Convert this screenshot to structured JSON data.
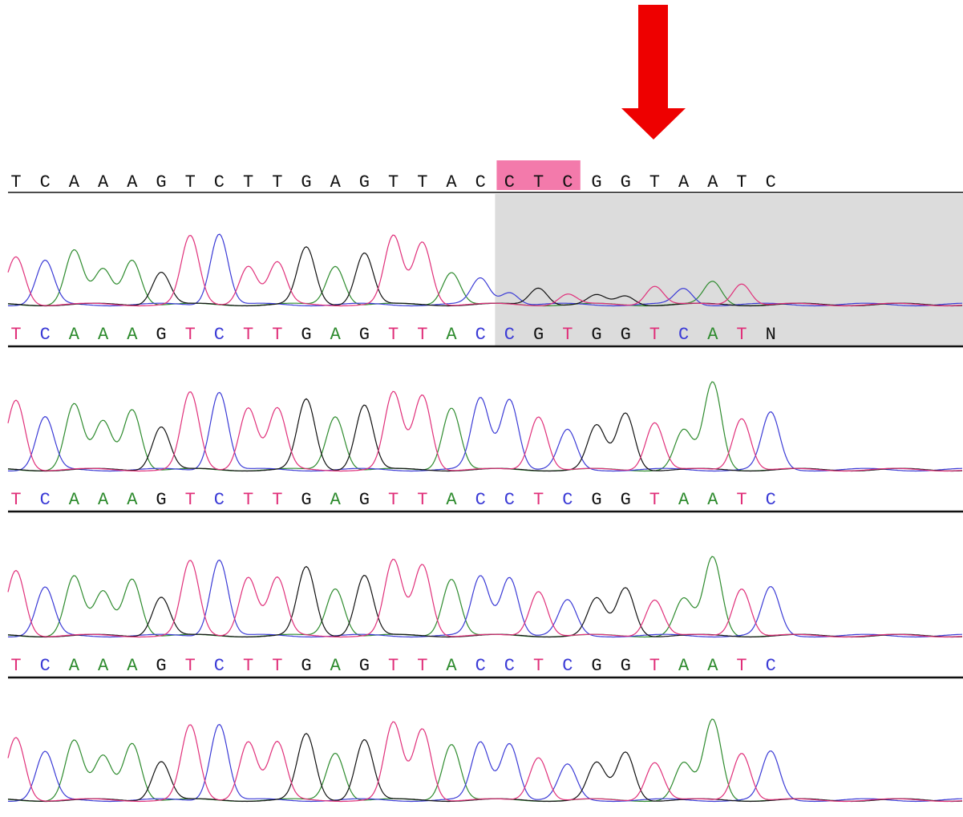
{
  "colors": {
    "A": "#2e8b2e",
    "C": "#3b3bd6",
    "G": "#111111",
    "T": "#e0307a",
    "N": "#111111",
    "reference_text": "#111111",
    "highlight": "#f37aab",
    "shade": "#dcdcdc",
    "arrow": "#ee0000"
  },
  "reference": {
    "bases": [
      "T",
      "C",
      "A",
      "A",
      "A",
      "G",
      "T",
      "C",
      "T",
      "T",
      "G",
      "A",
      "G",
      "T",
      "T",
      "A",
      "C",
      "C",
      "T",
      "C",
      "G",
      "G",
      "T",
      "A",
      "A",
      "T",
      "C"
    ],
    "highlight_range": [
      17,
      19
    ]
  },
  "traces": [
    {
      "name": "trace-1",
      "bases": [
        "T",
        "C",
        "A",
        "A",
        "A",
        "G",
        "T",
        "C",
        "T",
        "T",
        "G",
        "A",
        "G",
        "T",
        "T",
        "A",
        "C",
        "C",
        "G",
        "T",
        "G",
        "G",
        "T",
        "C",
        "A",
        "T",
        "N"
      ],
      "peak_levels": [
        0.55,
        0.5,
        0.62,
        0.4,
        0.52,
        0.38,
        0.78,
        0.82,
        0.45,
        0.48,
        0.65,
        0.45,
        0.6,
        0.78,
        0.72,
        0.38,
        0.3,
        0.15,
        0.2,
        0.12,
        0.1,
        0.1,
        0.22,
        0.18,
        0.26,
        0.25,
        0.14
      ],
      "shade_from": 17
    },
    {
      "name": "trace-2",
      "bases": [
        "T",
        "C",
        "A",
        "A",
        "A",
        "G",
        "T",
        "C",
        "T",
        "T",
        "G",
        "A",
        "G",
        "T",
        "T",
        "A",
        "C",
        "C",
        "T",
        "C",
        "G",
        "G",
        "T",
        "A",
        "A",
        "T",
        "C"
      ],
      "peak_levels": [
        0.8,
        0.6,
        0.75,
        0.55,
        0.7,
        0.5,
        0.88,
        0.9,
        0.72,
        0.7,
        0.8,
        0.62,
        0.75,
        0.88,
        0.86,
        0.72,
        0.82,
        0.82,
        0.62,
        0.45,
        0.5,
        0.65,
        0.55,
        0.45,
        1.0,
        0.6,
        0.65
      ],
      "shade_from": null
    },
    {
      "name": "trace-3",
      "bases": [
        "T",
        "C",
        "A",
        "A",
        "A",
        "G",
        "T",
        "C",
        "T",
        "T",
        "G",
        "A",
        "G",
        "T",
        "T",
        "A",
        "C",
        "C",
        "T",
        "C",
        "G",
        "G",
        "T",
        "A",
        "A",
        "T",
        "C"
      ],
      "peak_levels": [
        0.75,
        0.55,
        0.68,
        0.5,
        0.66,
        0.45,
        0.85,
        0.88,
        0.68,
        0.66,
        0.78,
        0.55,
        0.7,
        0.86,
        0.82,
        0.66,
        0.68,
        0.68,
        0.52,
        0.4,
        0.42,
        0.55,
        0.42,
        0.42,
        0.9,
        0.55,
        0.55
      ],
      "shade_from": null
    },
    {
      "name": "trace-4",
      "bases": [
        "T",
        "C",
        "A",
        "A",
        "A",
        "G",
        "T",
        "C",
        "T",
        "T",
        "G",
        "A",
        "G",
        "T",
        "T",
        "A",
        "C",
        "C",
        "T",
        "C",
        "G",
        "G",
        "T",
        "A",
        "A",
        "T",
        "C"
      ],
      "peak_levels": [
        0.72,
        0.55,
        0.68,
        0.5,
        0.66,
        0.45,
        0.85,
        0.88,
        0.68,
        0.66,
        0.75,
        0.55,
        0.7,
        0.88,
        0.82,
        0.65,
        0.66,
        0.66,
        0.5,
        0.4,
        0.42,
        0.55,
        0.44,
        0.42,
        0.92,
        0.55,
        0.55
      ],
      "shade_from": null
    }
  ]
}
